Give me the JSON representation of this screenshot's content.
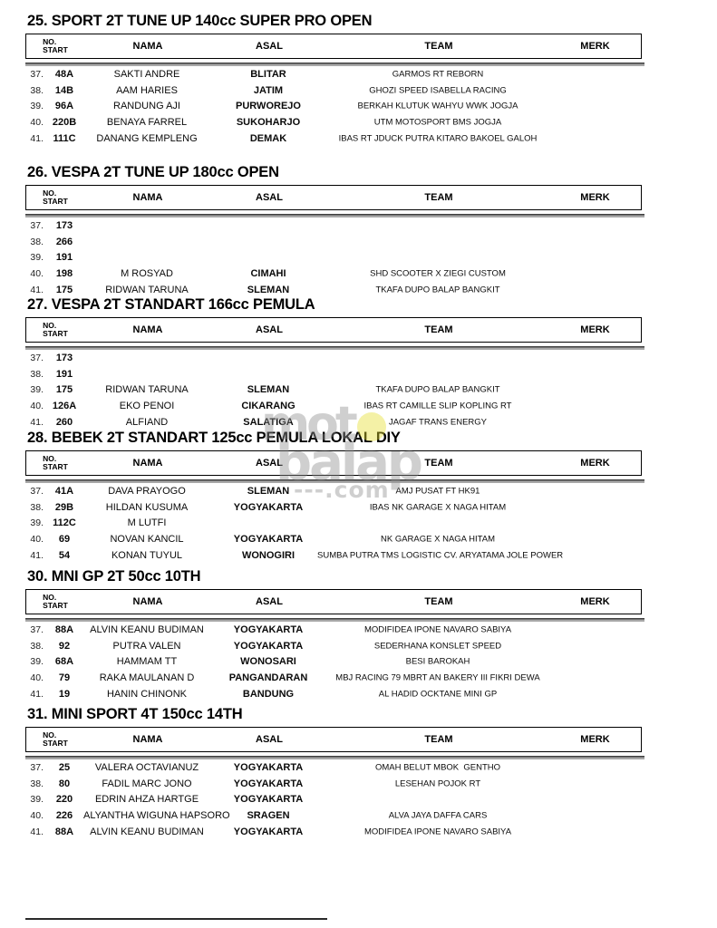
{
  "table_headers": {
    "no_start": "NO.\nSTART",
    "nama": "NAMA",
    "asal": "ASAL",
    "team": "TEAM",
    "merk": "MERK"
  },
  "watermark": {
    "word1": "mot",
    "word1_o_dot": "",
    "word2": "balap",
    "word3": "---.com",
    "gray_color": "#8f8f8f",
    "yellow_color": "#e5de2e"
  },
  "sections": [
    {
      "title": "25. SPORT 2T TUNE UP 140cc SUPER PRO OPEN",
      "rows": [
        {
          "no": "37.",
          "start": "48A",
          "nama": "SAKTI ANDRE",
          "asal": "BLITAR",
          "team": "GARMOS RT REBORN",
          "merk": ""
        },
        {
          "no": "38.",
          "start": "14B",
          "nama": "AAM HARIES",
          "asal": "JATIM",
          "team": "GHOZI SPEED ISABELLA RACING",
          "merk": ""
        },
        {
          "no": "39.",
          "start": "96A",
          "nama": "RANDUNG AJI",
          "asal": "PURWOREJO",
          "team": "BERKAH KLUTUK WAHYU WWK JOGJA",
          "merk": ""
        },
        {
          "no": "40.",
          "start": "220B",
          "nama": "BENAYA FARREL",
          "asal": "SUKOHARJO",
          "team": "UTM MOTOSPORT BMS JOGJA",
          "merk": ""
        },
        {
          "no": "41.",
          "start": "111C",
          "nama": "DANANG KEMPLENG",
          "asal": "DEMAK",
          "team": "IBAS RT JDUCK PUTRA KITARO BAKOEL GALOH",
          "merk": ""
        }
      ]
    },
    {
      "title": "26. VESPA 2T TUNE UP 180cc OPEN",
      "rows": [
        {
          "no": "37.",
          "start": "173",
          "nama": "",
          "asal": "",
          "team": "",
          "merk": ""
        },
        {
          "no": "38.",
          "start": "266",
          "nama": "",
          "asal": "",
          "team": "",
          "merk": ""
        },
        {
          "no": "39.",
          "start": "191",
          "nama": "",
          "asal": "",
          "team": "",
          "merk": ""
        },
        {
          "no": "40.",
          "start": "198",
          "nama": "M ROSYAD",
          "asal": "CIMAHI",
          "team": "SHD SCOOTER X ZIEGI CUSTOM",
          "merk": ""
        },
        {
          "no": "41.",
          "start": "175",
          "nama": "RIDWAN TARUNA",
          "asal": "SLEMAN",
          "team": "TKAFA DUPO BALAP BANGKIT",
          "merk": ""
        }
      ]
    },
    {
      "title": "27. VESPA 2T STANDART 166cc PEMULA",
      "rows": [
        {
          "no": "37.",
          "start": "173",
          "nama": "",
          "asal": "",
          "team": "",
          "merk": ""
        },
        {
          "no": "38.",
          "start": "191",
          "nama": "",
          "asal": "",
          "team": "",
          "merk": ""
        },
        {
          "no": "39.",
          "start": "175",
          "nama": "RIDWAN TARUNA",
          "asal": "SLEMAN",
          "team": "TKAFA DUPO BALAP BANGKIT",
          "merk": ""
        },
        {
          "no": "40.",
          "start": "126A",
          "nama": "EKO PENOI",
          "asal": "CIKARANG",
          "team": "IBAS RT CAMILLE SLIP KOPLING RT",
          "merk": ""
        },
        {
          "no": "41.",
          "start": "260",
          "nama": "ALFIAND",
          "asal": "SALATIGA",
          "team": "JAGAF TRANS ENERGY",
          "merk": ""
        }
      ]
    },
    {
      "title": "28. BEBEK 2T STANDART 125cc PEMULA LOKAL DIY",
      "rows": [
        {
          "no": "37.",
          "start": "41A",
          "nama": "DAVA PRAYOGO",
          "asal": "SLEMAN",
          "team": "AMJ PUSAT FT HK91",
          "merk": ""
        },
        {
          "no": "38.",
          "start": "29B",
          "nama": "HILDAN KUSUMA",
          "asal": "YOGYAKARTA",
          "team": "IBAS NK GARAGE X NAGA HITAM",
          "merk": ""
        },
        {
          "no": "39.",
          "start": "112C",
          "nama": "M LUTFI",
          "asal": "",
          "team": "",
          "merk": ""
        },
        {
          "no": "40.",
          "start": "69",
          "nama": "NOVAN KANCIL",
          "asal": "YOGYAKARTA",
          "team": "NK GARAGE X NAGA HITAM",
          "merk": ""
        },
        {
          "no": "41.",
          "start": "54",
          "nama": "KONAN TUYUL",
          "asal": "WONOGIRI",
          "team": "SUMBA PUTRA TMS LOGISTIC CV. ARYATAMA JOLE POWER",
          "merk": ""
        }
      ]
    },
    {
      "title": "30. MNI GP 2T 50cc 10TH",
      "rows": [
        {
          "no": "37.",
          "start": "88A",
          "nama": "ALVIN KEANU BUDIMAN",
          "asal": "YOGYAKARTA",
          "team": "MODIFIDEA IPONE NAVARO SABIYA",
          "merk": ""
        },
        {
          "no": "38.",
          "start": "92",
          "nama": "PUTRA VALEN",
          "asal": "YOGYAKARTA",
          "team": "SEDERHANA KONSLET SPEED",
          "merk": ""
        },
        {
          "no": "39.",
          "start": "68A",
          "nama": "HAMMAM TT",
          "asal": "WONOSARI",
          "team": "BESI BAROKAH",
          "merk": ""
        },
        {
          "no": "40.",
          "start": "79",
          "nama": "RAKA MAULANAN D",
          "asal": "PANGANDARAN",
          "team": "MBJ RACING 79 MBRT AN BAKERY III FIKRI DEWA",
          "merk": ""
        },
        {
          "no": "41.",
          "start": "19",
          "nama": "HANIN CHINONK",
          "asal": "BANDUNG",
          "team": "AL HADID OCKTANE MINI GP",
          "merk": ""
        }
      ]
    },
    {
      "title": "31. MINI SPORT 4T 150cc 14TH",
      "rows": [
        {
          "no": "37.",
          "start": "25",
          "nama": "VALERA OCTAVIANUZ",
          "asal": "YOGYAKARTA",
          "team": "OMAH BELUT MBOK  GENTHO",
          "merk": ""
        },
        {
          "no": "38.",
          "start": "80",
          "nama": "FADIL MARC JONO",
          "asal": "YOGYAKARTA",
          "team": "LESEHAN POJOK RT",
          "merk": ""
        },
        {
          "no": "39.",
          "start": "220",
          "nama": "EDRIN AHZA HARTGE",
          "asal": "YOGYAKARTA",
          "team": "",
          "merk": ""
        },
        {
          "no": "40.",
          "start": "226",
          "nama": "ALYANTHA WIGUNA HAPSORO",
          "asal": "SRAGEN",
          "team": "ALVA JAYA DAFFA CARS",
          "merk": ""
        },
        {
          "no": "41.",
          "start": "88A",
          "nama": "ALVIN KEANU BUDIMAN",
          "asal": "YOGYAKARTA",
          "team": "MODIFIDEA IPONE NAVARO SABIYA",
          "merk": ""
        }
      ]
    }
  ]
}
